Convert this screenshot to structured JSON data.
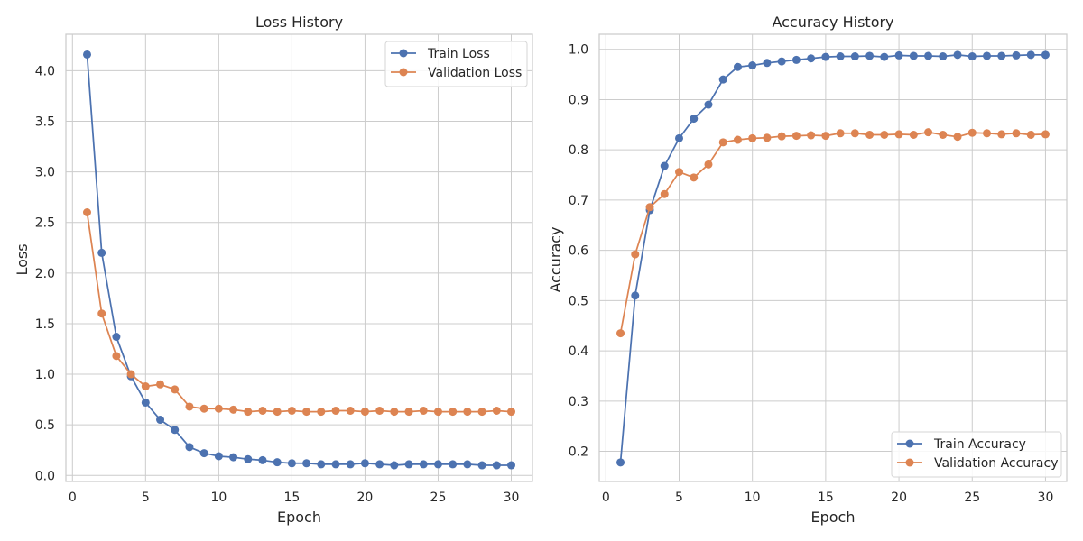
{
  "chart_data": [
    {
      "type": "line",
      "title": "Loss History",
      "xlabel": "Epoch",
      "ylabel": "Loss",
      "x": [
        1,
        2,
        3,
        4,
        5,
        6,
        7,
        8,
        9,
        10,
        11,
        12,
        13,
        14,
        15,
        16,
        17,
        18,
        19,
        20,
        21,
        22,
        23,
        24,
        25,
        26,
        27,
        28,
        29,
        30
      ],
      "xlim": [
        -0.45,
        31.45
      ],
      "ylim": [
        -0.06,
        4.36
      ],
      "xticks": [
        0,
        5,
        10,
        15,
        20,
        25,
        30
      ],
      "yticks": [
        0.0,
        0.5,
        1.0,
        1.5,
        2.0,
        2.5,
        3.0,
        3.5,
        4.0
      ],
      "ytick_labels": [
        "0.0",
        "0.5",
        "1.0",
        "1.5",
        "2.0",
        "2.5",
        "3.0",
        "3.5",
        "4.0"
      ],
      "grid": true,
      "legend_position": "top-right",
      "series": [
        {
          "name": "Train Loss",
          "color": "#4c72b0",
          "values": [
            4.16,
            2.2,
            1.37,
            0.98,
            0.72,
            0.55,
            0.45,
            0.28,
            0.22,
            0.19,
            0.18,
            0.16,
            0.15,
            0.13,
            0.12,
            0.12,
            0.11,
            0.11,
            0.11,
            0.12,
            0.11,
            0.1,
            0.11,
            0.11,
            0.11,
            0.11,
            0.11,
            0.1,
            0.1,
            0.1
          ]
        },
        {
          "name": "Validation Loss",
          "color": "#dd8452",
          "values": [
            2.6,
            1.6,
            1.18,
            1.0,
            0.88,
            0.9,
            0.85,
            0.68,
            0.66,
            0.66,
            0.65,
            0.63,
            0.64,
            0.63,
            0.64,
            0.63,
            0.63,
            0.64,
            0.64,
            0.63,
            0.64,
            0.63,
            0.63,
            0.64,
            0.63,
            0.63,
            0.63,
            0.63,
            0.64,
            0.63
          ]
        }
      ]
    },
    {
      "type": "line",
      "title": "Accuracy History",
      "xlabel": "Epoch",
      "ylabel": "Accuracy",
      "x": [
        1,
        2,
        3,
        4,
        5,
        6,
        7,
        8,
        9,
        10,
        11,
        12,
        13,
        14,
        15,
        16,
        17,
        18,
        19,
        20,
        21,
        22,
        23,
        24,
        25,
        26,
        27,
        28,
        29,
        30
      ],
      "xlim": [
        -0.45,
        31.45
      ],
      "ylim": [
        0.14,
        1.03
      ],
      "xticks": [
        0,
        5,
        10,
        15,
        20,
        25,
        30
      ],
      "yticks": [
        0.2,
        0.3,
        0.4,
        0.5,
        0.6,
        0.7,
        0.8,
        0.9,
        1.0
      ],
      "ytick_labels": [
        "0.2",
        "0.3",
        "0.4",
        "0.5",
        "0.6",
        "0.7",
        "0.8",
        "0.9",
        "1.0"
      ],
      "grid": true,
      "legend_position": "bottom-right",
      "series": [
        {
          "name": "Train Accuracy",
          "color": "#4c72b0",
          "values": [
            0.178,
            0.51,
            0.68,
            0.768,
            0.823,
            0.862,
            0.89,
            0.94,
            0.965,
            0.968,
            0.973,
            0.976,
            0.979,
            0.982,
            0.985,
            0.986,
            0.986,
            0.987,
            0.985,
            0.988,
            0.987,
            0.987,
            0.986,
            0.989,
            0.986,
            0.987,
            0.987,
            0.988,
            0.989,
            0.989
          ]
        },
        {
          "name": "Validation Accuracy",
          "color": "#dd8452",
          "values": [
            0.435,
            0.592,
            0.686,
            0.712,
            0.756,
            0.745,
            0.771,
            0.815,
            0.82,
            0.823,
            0.824,
            0.827,
            0.828,
            0.829,
            0.828,
            0.833,
            0.833,
            0.83,
            0.83,
            0.831,
            0.83,
            0.835,
            0.83,
            0.826,
            0.834,
            0.833,
            0.831,
            0.833,
            0.83,
            0.831
          ]
        }
      ]
    }
  ]
}
